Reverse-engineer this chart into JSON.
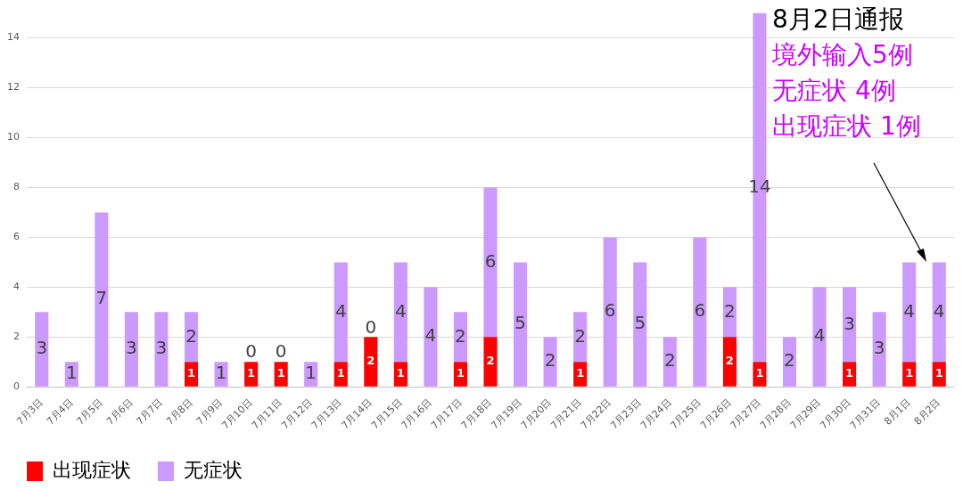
{
  "chart_data": {
    "type": "bar",
    "stacked": true,
    "categories": [
      "7月3日",
      "7月4日",
      "7月5日",
      "7月6日",
      "7月7日",
      "7月8日",
      "7月9日",
      "7月10日",
      "7月11日",
      "7月12日",
      "7月13日",
      "7月14日",
      "7月15日",
      "7月16日",
      "7月17日",
      "7月18日",
      "7月19日",
      "7月20日",
      "7月21日",
      "7月22日",
      "7月23日",
      "7月24日",
      "7月25日",
      "7月26日",
      "7月27日",
      "7月28日",
      "7月29日",
      "7月30日",
      "7月31日",
      "8月1日",
      "8月2日"
    ],
    "series": [
      {
        "name": "出现症状",
        "color": "#ff0000",
        "values": [
          0,
          0,
          0,
          0,
          0,
          1,
          0,
          1,
          1,
          0,
          1,
          2,
          1,
          0,
          1,
          2,
          0,
          0,
          1,
          0,
          0,
          0,
          0,
          2,
          1,
          0,
          0,
          1,
          0,
          1,
          1
        ],
        "value_labels": [
          null,
          null,
          null,
          null,
          null,
          "1",
          null,
          "1",
          "1",
          null,
          "1",
          "2",
          "1",
          null,
          "1",
          "2",
          null,
          null,
          "1",
          null,
          null,
          null,
          null,
          "2",
          "1",
          null,
          null,
          "1",
          null,
          "1",
          "1"
        ]
      },
      {
        "name": "无症状",
        "color": "#cc99ff",
        "values": [
          3,
          1,
          7,
          3,
          3,
          2,
          1,
          0,
          0,
          1,
          4,
          0,
          4,
          4,
          2,
          6,
          5,
          2,
          2,
          6,
          5,
          2,
          6,
          2,
          14,
          2,
          4,
          3,
          3,
          4,
          4
        ],
        "value_labels": [
          "3",
          "1",
          "7",
          "3",
          "3",
          "2",
          "1",
          "0",
          "0",
          "1",
          "4",
          "0",
          "4",
          "4",
          "2",
          "6",
          "5",
          "2",
          "2",
          "6",
          "5",
          "2",
          "6",
          "2",
          "14",
          "2",
          "4",
          "3",
          "3",
          "4",
          "4"
        ]
      }
    ],
    "ylim": [
      0,
      15
    ],
    "yticks": [
      0,
      2,
      4,
      6,
      8,
      10,
      12,
      14
    ],
    "grid": "y",
    "legend": "bottom left",
    "annotations": [
      "8月2日通报",
      "境外输入5例",
      "无症状 4例",
      "出现症状 1例"
    ]
  }
}
